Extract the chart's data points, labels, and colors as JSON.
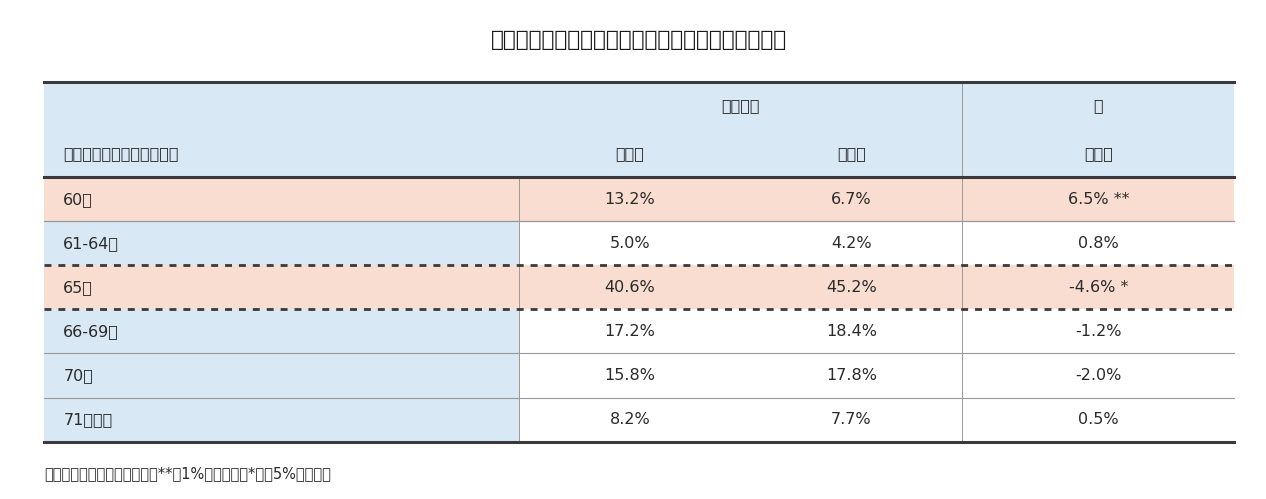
{
  "title": "図表１：公的年金への信頼度と年金の受給開始年齢",
  "header_row1_center": "公的年金",
  "header_row1_right": "差",
  "header_row2": [
    "何歳で受給開始したいか？",
    "信頼低",
    "信頼高",
    "低－高"
  ],
  "rows": [
    {
      "label": "60歳",
      "low": "13.2%",
      "high": "6.7%",
      "diff": "6.5% **",
      "bg": "pink"
    },
    {
      "label": "61-64歳",
      "low": "5.0%",
      "high": "4.2%",
      "diff": "0.8%",
      "bg": "white"
    },
    {
      "label": "65歳",
      "low": "40.6%",
      "high": "45.2%",
      "diff": "-4.6% *",
      "bg": "pink"
    },
    {
      "label": "66-69歳",
      "low": "17.2%",
      "high": "18.4%",
      "diff": "-1.2%",
      "bg": "white"
    },
    {
      "label": "70歳",
      "low": "15.8%",
      "high": "17.8%",
      "diff": "-2.0%",
      "bg": "white"
    },
    {
      "label": "71歳以上",
      "low": "8.2%",
      "high": "7.7%",
      "diff": "0.5%",
      "bg": "white"
    }
  ],
  "footer": "（資料）筆者作成　（注）　**は1%有意水準、*は同5%を表す。",
  "colors": {
    "header_bg": "#d9e8f5",
    "pink_bg": "#f9ddd0",
    "white_bg": "#ffffff",
    "label_col_bg": "#d9e8f5",
    "border_dark": "#3a3a3a",
    "border_light": "#999999",
    "title_color": "#1a1a1a",
    "text_color": "#2a2a2a"
  },
  "figsize": [
    12.66,
    4.99
  ],
  "dpi": 100
}
